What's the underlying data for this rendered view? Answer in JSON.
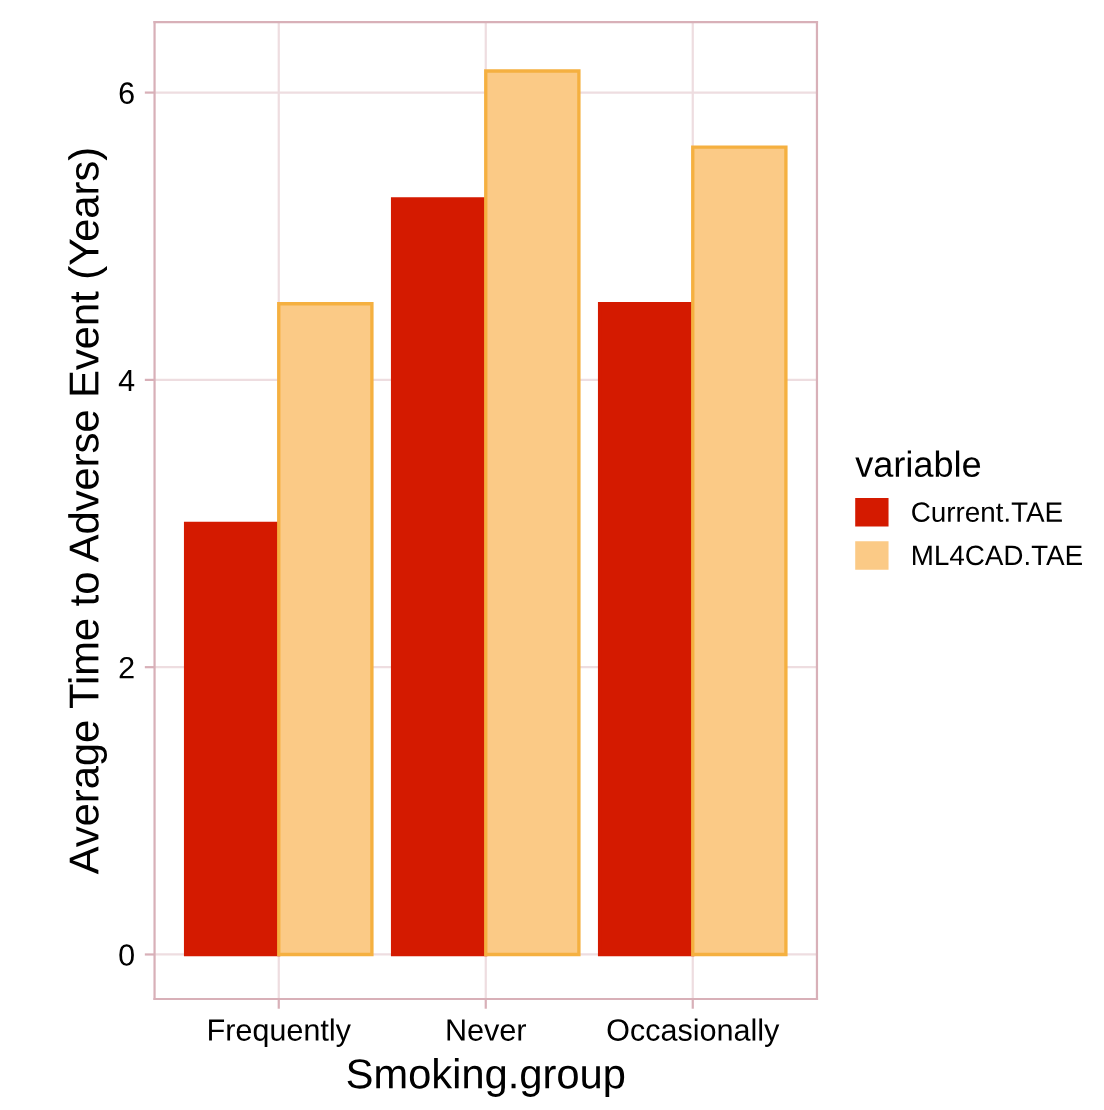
{
  "chart_data": {
    "type": "bar",
    "xlabel": "Smoking.group",
    "ylabel": "Average Time to Adverse Event (Years)",
    "legend_title": "variable",
    "categories": [
      "Frequently",
      "Never",
      "Occasionally"
    ],
    "series": [
      {
        "name": "Current.TAE",
        "color": "#d41a00",
        "values": [
          3.0,
          5.26,
          4.53
        ]
      },
      {
        "name": "ML4CAD.TAE",
        "color": "#fbca86",
        "values": [
          4.53,
          6.15,
          5.62
        ]
      }
    ],
    "ylim": [
      -0.31,
      6.49
    ],
    "yticks": [
      0,
      2,
      4,
      6
    ],
    "grid": true,
    "legend": "right"
  }
}
